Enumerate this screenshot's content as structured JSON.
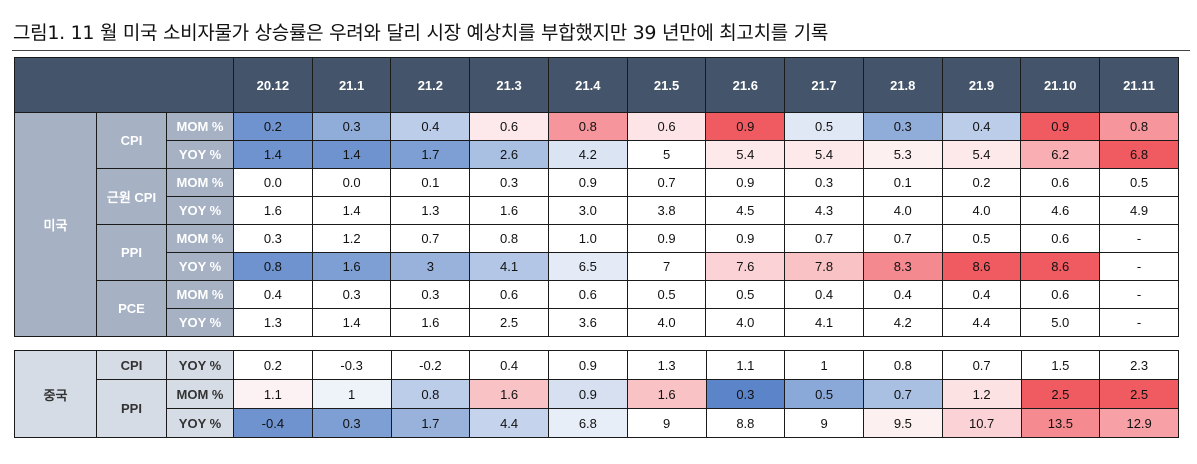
{
  "title": "그림1. 11 월 미국 소비자물가 상승률은 우려와 달리 시장 예상치를 부합했지만 39 년만에 최고치를 기록",
  "columns": [
    "20.12",
    "21.1",
    "21.2",
    "21.3",
    "21.4",
    "21.5",
    "21.6",
    "21.7",
    "21.8",
    "21.9",
    "21.10",
    "21.11"
  ],
  "us": {
    "label": "미국",
    "categories": [
      {
        "name": "CPI",
        "rows": [
          {
            "label": "MOM %",
            "values": [
              "0.2",
              "0.3",
              "0.4",
              "0.6",
              "0.8",
              "0.6",
              "0.9",
              "0.5",
              "0.3",
              "0.4",
              "0.9",
              "0.8"
            ],
            "colors": [
              "#6f93cf",
              "#90acd9",
              "#bccde9",
              "#fde9eb",
              "#f6959b",
              "#fde5e7",
              "#ef5b61",
              "#e1e8f5",
              "#90acd9",
              "#bccde9",
              "#ef5b61",
              "#f6959b"
            ]
          },
          {
            "label": "YOY %",
            "values": [
              "1.4",
              "1.4",
              "1.7",
              "2.6",
              "4.2",
              "5",
              "5.4",
              "5.4",
              "5.3",
              "5.4",
              "6.2",
              "6.8"
            ],
            "colors": [
              "#6f93cf",
              "#6f93cf",
              "#7d9fd4",
              "#a9c0e2",
              "#dbe4f3",
              "#ffffff",
              "#fde8ea",
              "#fde8ea",
              "#fdf0f1",
              "#fde8ea",
              "#f8aeb2",
              "#ef5b61"
            ]
          }
        ]
      },
      {
        "name": "근원 CPI",
        "rows": [
          {
            "label": "MOM %",
            "values": [
              "0.0",
              "0.0",
              "0.1",
              "0.3",
              "0.9",
              "0.7",
              "0.9",
              "0.3",
              "0.1",
              "0.2",
              "0.6",
              "0.5"
            ],
            "colors": []
          },
          {
            "label": "YOY %",
            "values": [
              "1.6",
              "1.4",
              "1.3",
              "1.6",
              "3.0",
              "3.8",
              "4.5",
              "4.3",
              "4.0",
              "4.0",
              "4.6",
              "4.9"
            ],
            "colors": []
          }
        ]
      },
      {
        "name": "PPI",
        "rows": [
          {
            "label": "MOM %",
            "values": [
              "0.3",
              "1.2",
              "0.7",
              "0.8",
              "1.0",
              "0.9",
              "0.9",
              "0.7",
              "0.7",
              "0.5",
              "0.6",
              "-"
            ],
            "colors": []
          },
          {
            "label": "YOY %",
            "values": [
              "0.8",
              "1.6",
              "3",
              "4.1",
              "6.5",
              "7",
              "7.6",
              "7.8",
              "8.3",
              "8.6",
              "8.6",
              "-"
            ],
            "colors": [
              "#6f93cf",
              "#7d9fd4",
              "#98b2dc",
              "#b3c6e6",
              "#e4ebf6",
              "#ffffff",
              "#fbd3d6",
              "#f9c2c5",
              "#f48a90",
              "#ef5b61",
              "#ef5b61",
              "#ffffff"
            ]
          }
        ]
      },
      {
        "name": "PCE",
        "rows": [
          {
            "label": "MOM %",
            "values": [
              "0.4",
              "0.3",
              "0.3",
              "0.6",
              "0.6",
              "0.5",
              "0.5",
              "0.4",
              "0.4",
              "0.4",
              "0.6",
              "-"
            ],
            "colors": []
          },
          {
            "label": "YOY %",
            "values": [
              "1.3",
              "1.4",
              "1.6",
              "2.5",
              "3.6",
              "4.0",
              "4.0",
              "4.1",
              "4.2",
              "4.4",
              "5.0",
              "-"
            ],
            "colors": []
          }
        ]
      }
    ]
  },
  "cn": {
    "label": "중국",
    "categories": [
      {
        "name": "CPI",
        "rows": [
          {
            "label": "YOY %",
            "values": [
              "0.2",
              "-0.3",
              "-0.2",
              "0.4",
              "0.9",
              "1.3",
              "1.1",
              "1",
              "0.8",
              "0.7",
              "1.5",
              "2.3"
            ],
            "colors": []
          }
        ]
      },
      {
        "name": "PPI",
        "rows": [
          {
            "label": "MOM %",
            "values": [
              "1.1",
              "1",
              "0.8",
              "1.6",
              "0.9",
              "1.6",
              "0.3",
              "0.5",
              "0.7",
              "1.2",
              "2.5",
              "2.5"
            ],
            "colors": [
              "#fdf2f3",
              "#eef2f9",
              "#bccde9",
              "#f9c2c5",
              "#d6e0f1",
              "#f9c2c5",
              "#5b84c9",
              "#8aa8d8",
              "#a9c0e2",
              "#fde2e4",
              "#ef5b61",
              "#ef5b61"
            ]
          },
          {
            "label": "YOY %",
            "values": [
              "-0.4",
              "0.3",
              "1.7",
              "4.4",
              "6.8",
              "9",
              "8.8",
              "9",
              "9.5",
              "10.7",
              "13.5",
              "12.9"
            ],
            "colors": [
              "#6f93cf",
              "#7d9fd4",
              "#98b2dc",
              "#c5d4ec",
              "#e8eef8",
              "#ffffff",
              "#ffffff",
              "#ffffff",
              "#fdf0f1",
              "#fbd3d6",
              "#f58a90",
              "#f7a1a6"
            ]
          }
        ]
      }
    ]
  }
}
